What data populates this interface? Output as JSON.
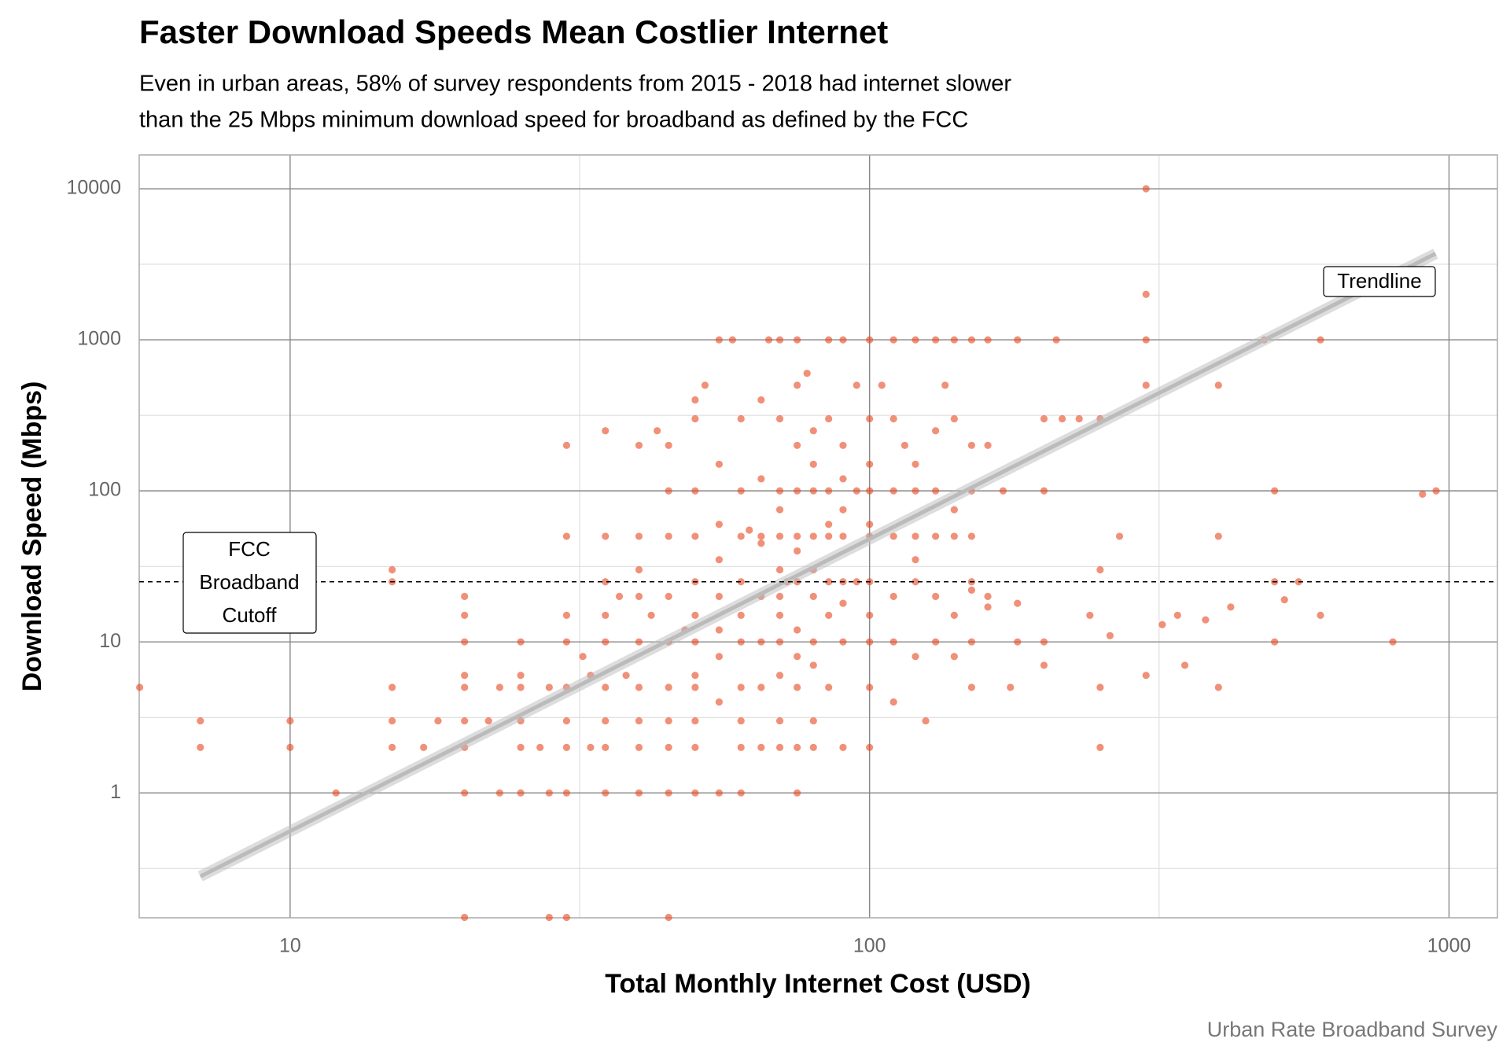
{
  "chart_data": {
    "type": "scatter",
    "title": "Faster Download Speeds Mean Costlier Internet",
    "subtitle": [
      "Even in urban areas, 58% of survey respondents from 2015 - 2018 had internet slower",
      "than the 25 Mbps minimum download speed for broadband as defined by the FCC"
    ],
    "x_label": "Total Monthly Internet Cost (USD)",
    "y_label": "Download Speed (Mbps)",
    "caption": "Urban Rate Broadband Survey",
    "x_log": true,
    "y_log": true,
    "grid": true,
    "xlim": [
      5.49,
      1212
    ],
    "ylim": [
      0.149,
      16750
    ],
    "xticks": [
      10,
      100,
      1000
    ],
    "yticks": [
      1,
      10,
      100,
      1000,
      10000
    ],
    "xminorticks": [
      31.6,
      316
    ],
    "yminorticks": [
      0.316,
      3.16,
      31.6,
      316,
      3162
    ],
    "hline": {
      "value": 25,
      "color": "#000000"
    },
    "trendline": {
      "color": "#bbbbbb",
      "x": [
        7,
        948
      ],
      "y": [
        0.28,
        3720
      ]
    },
    "annotations": [
      {
        "text": [
          "FCC",
          "Broadband",
          "Cutoff"
        ]
      },
      {
        "text": "Trendline"
      }
    ],
    "series": [
      {
        "color": "#e8461e",
        "x": [
          5.5,
          7,
          7,
          10,
          10,
          12,
          15,
          15,
          15,
          15,
          15,
          17,
          18,
          20,
          20,
          20,
          20,
          20,
          20,
          20,
          20,
          20,
          22,
          23,
          23,
          25,
          25,
          25,
          25,
          25,
          25,
          27,
          28,
          28,
          28,
          30,
          30,
          30,
          30,
          30,
          30,
          30,
          30,
          30,
          32,
          33,
          33,
          35,
          35,
          35,
          35,
          35,
          35,
          35,
          35,
          35,
          37,
          38,
          40,
          40,
          40,
          40,
          40,
          40,
          40,
          40,
          40,
          42,
          43,
          45,
          45,
          45,
          45,
          45,
          45,
          45,
          45,
          45,
          45,
          48,
          50,
          50,
          50,
          50,
          50,
          50,
          50,
          50,
          50,
          50,
          50,
          50,
          52,
          55,
          55,
          55,
          55,
          55,
          55,
          55,
          55,
          58,
          60,
          60,
          60,
          60,
          60,
          60,
          60,
          60,
          60,
          60,
          62,
          65,
          65,
          65,
          65,
          65,
          65,
          65,
          67,
          70,
          70,
          70,
          70,
          70,
          70,
          70,
          70,
          70,
          70,
          70,
          70,
          72,
          75,
          75,
          75,
          75,
          75,
          75,
          75,
          75,
          75,
          75,
          75,
          75,
          78,
          80,
          80,
          80,
          80,
          80,
          80,
          80,
          80,
          80,
          80,
          85,
          85,
          85,
          85,
          85,
          85,
          85,
          85,
          90,
          90,
          90,
          90,
          90,
          90,
          90,
          90,
          95,
          95,
          95,
          100,
          100,
          100,
          100,
          100,
          100,
          100,
          100,
          100,
          100,
          100,
          105,
          110,
          110,
          110,
          110,
          110,
          110,
          110,
          115,
          120,
          120,
          120,
          120,
          120,
          120,
          125,
          130,
          130,
          130,
          130,
          130,
          130,
          135,
          140,
          140,
          140,
          140,
          140,
          140,
          150,
          150,
          150,
          150,
          150,
          150,
          150,
          160,
          160,
          160,
          170,
          175,
          180,
          180,
          200,
          200,
          200,
          200,
          210,
          215,
          230,
          240,
          250,
          250,
          250,
          250,
          260,
          270,
          300,
          300,
          300,
          300,
          300,
          320,
          340,
          400,
          400,
          350,
          380,
          400,
          420,
          480,
          500,
          500,
          500,
          520,
          600,
          550,
          600,
          800,
          900,
          950,
          150,
          160,
          180,
          120,
          90,
          65,
          55
        ],
        "y": [
          5,
          3,
          2,
          3,
          2,
          1,
          30,
          25,
          5,
          3,
          2,
          2,
          3,
          20,
          15,
          10,
          6,
          5,
          3,
          2,
          1,
          0.15,
          3,
          5,
          1,
          10,
          6,
          5,
          3,
          2,
          1,
          2,
          5,
          1,
          0.15,
          200,
          50,
          15,
          10,
          5,
          3,
          2,
          1,
          0.15,
          8,
          6,
          2,
          250,
          50,
          25,
          15,
          10,
          5,
          3,
          2,
          1,
          20,
          6,
          200,
          50,
          30,
          20,
          10,
          5,
          3,
          2,
          1,
          15,
          250,
          200,
          100,
          50,
          20,
          10,
          5,
          3,
          2,
          1,
          0.15,
          12,
          400,
          300,
          100,
          50,
          25,
          15,
          10,
          6,
          5,
          3,
          2,
          1,
          500,
          1000,
          150,
          60,
          20,
          12,
          8,
          4,
          1,
          1000,
          300,
          100,
          50,
          25,
          15,
          10,
          5,
          3,
          2,
          1,
          55,
          400,
          120,
          50,
          20,
          10,
          5,
          2,
          1000,
          1000,
          300,
          100,
          75,
          50,
          30,
          20,
          15,
          10,
          6,
          3,
          2,
          25,
          1000,
          500,
          200,
          100,
          50,
          40,
          25,
          12,
          8,
          5,
          2,
          1,
          600,
          250,
          150,
          100,
          50,
          30,
          20,
          10,
          7,
          3,
          2,
          1000,
          300,
          100,
          60,
          50,
          25,
          15,
          5,
          1000,
          200,
          120,
          75,
          50,
          25,
          10,
          2,
          500,
          100,
          25,
          1000,
          300,
          150,
          100,
          60,
          50,
          25,
          15,
          10,
          5,
          2,
          500,
          1000,
          300,
          100,
          50,
          20,
          10,
          4,
          200,
          1000,
          150,
          100,
          50,
          25,
          8,
          3,
          1000,
          250,
          100,
          50,
          20,
          10,
          500,
          1000,
          300,
          75,
          50,
          15,
          8,
          1000,
          200,
          100,
          50,
          25,
          10,
          5,
          1000,
          200,
          20,
          100,
          5,
          1000,
          10,
          300,
          100,
          10,
          7,
          1000,
          300,
          300,
          15,
          300,
          30,
          5,
          2,
          11,
          50,
          10000,
          2000,
          1000,
          500,
          6,
          13,
          15,
          500,
          50,
          7,
          14,
          5,
          17,
          1000,
          100,
          25,
          10,
          19,
          1000,
          25,
          15,
          10,
          95,
          100,
          22,
          17,
          18,
          35,
          18,
          45,
          35
        ]
      }
    ]
  }
}
